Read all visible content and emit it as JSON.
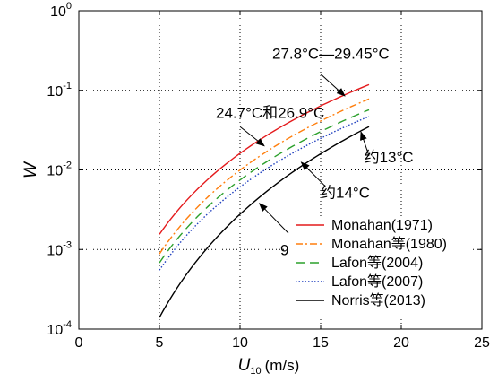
{
  "chart_data": {
    "type": "line",
    "title": "",
    "xlabel": "U",
    "xlabel_sub": "10",
    "xlabel_unit": "(m/s)",
    "ylabel": "W",
    "xlim": [
      0,
      25
    ],
    "ylim": [
      0.0001,
      1
    ],
    "yscale": "log",
    "xticks": [
      0,
      5,
      10,
      15,
      20,
      25
    ],
    "xtick_labels": [
      "0",
      "5",
      "10",
      "15",
      "20",
      "25"
    ],
    "yticks": [
      0.0001,
      0.001,
      0.01,
      0.1,
      1
    ],
    "ytick_labels": [
      {
        "base": "10",
        "exp": "-4"
      },
      {
        "base": "10",
        "exp": "-3"
      },
      {
        "base": "10",
        "exp": "-2"
      },
      {
        "base": "10",
        "exp": "-1"
      },
      {
        "base": "10",
        "exp": "0"
      }
    ],
    "grid": "dotted",
    "legend_position": "bottom-right",
    "series": [
      {
        "name": "Monahan(1971)",
        "color": "#e41a1c",
        "dash": "",
        "x": [
          5,
          18
        ],
        "y": [
          0.00155,
          0.118
        ]
      },
      {
        "name": "Monahan等(1980)",
        "color": "#ff7f0e",
        "dash": "8 3 2 3",
        "x": [
          5,
          18
        ],
        "y": [
          0.00088,
          0.078
        ]
      },
      {
        "name": "Lafon等(2004)",
        "color": "#2ca02c",
        "dash": "10 6",
        "x": [
          5,
          18
        ],
        "y": [
          0.00068,
          0.057
        ]
      },
      {
        "name": "Lafon等(2007)",
        "color": "#1f3fbf",
        "dash": "1.5 2",
        "x": [
          5,
          18
        ],
        "y": [
          0.00055,
          0.047
        ]
      },
      {
        "name": "Norris等(2013)",
        "color": "#000000",
        "dash": "",
        "x": [
          5,
          18
        ],
        "y": [
          0.00014,
          0.035
        ]
      }
    ],
    "annotations": [
      {
        "text": "27.8°C—29.45°C",
        "x": 12.0,
        "y": 0.25,
        "arrow_to": [
          16.5,
          0.085
        ],
        "arrow_from": [
          15.0,
          0.16
        ]
      },
      {
        "text": "24.7°C和26.9°C",
        "x": 8.5,
        "y": 0.045,
        "arrow_to": [
          11.5,
          0.02
        ],
        "arrow_from": [
          10.0,
          0.035
        ]
      },
      {
        "text": "约13°C",
        "x": 17.7,
        "y": 0.0125,
        "arrow_to": [
          17.5,
          0.03
        ],
        "arrow_from": [
          18.0,
          0.015
        ]
      },
      {
        "text": "约14°C",
        "x": 15.0,
        "y": 0.0045,
        "arrow_to": [
          13.8,
          0.0125
        ],
        "arrow_from": [
          15.3,
          0.0062
        ]
      },
      {
        "text": "9.04°C—12.3°C",
        "x": 12.5,
        "y": 0.00085,
        "arrow_to": [
          11.2,
          0.0038
        ],
        "arrow_from": [
          13.0,
          0.0016
        ]
      }
    ]
  }
}
